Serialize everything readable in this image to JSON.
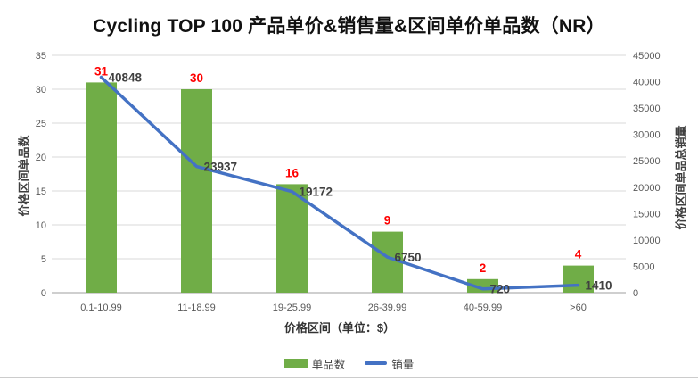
{
  "chart_data": {
    "type": "bar+line",
    "title": "Cycling TOP 100 产品单价&销售量&区间单价单品数（NR）",
    "categories": [
      "0.1-10.99",
      "11-18.99",
      "19-25.99",
      "26-39.99",
      "40-59.99",
      ">60"
    ],
    "series": [
      {
        "name": "单品数",
        "type": "bar",
        "axis": "left",
        "color": "#70AD47",
        "label_color": "#FF0000",
        "values": [
          31,
          30,
          16,
          9,
          2,
          4
        ]
      },
      {
        "name": "销量",
        "type": "line",
        "axis": "right",
        "color": "#4472C4",
        "label_color": "#404040",
        "values": [
          40848,
          23937,
          19172,
          6750,
          720,
          1410
        ]
      }
    ],
    "xlabel": "价格区间（单位：$）",
    "ylabel_left": "价格区间单品数",
    "ylabel_right": "价格区间单品总销量",
    "y_left": {
      "min": 0,
      "max": 35,
      "step": 5
    },
    "y_right": {
      "min": 0,
      "max": 45000,
      "step": 5000
    },
    "grid": true,
    "legend_position": "bottom",
    "colors": {
      "grid": "#D9D9D9",
      "axis_line": "#BFBFBF",
      "tick_text": "#595959"
    }
  }
}
